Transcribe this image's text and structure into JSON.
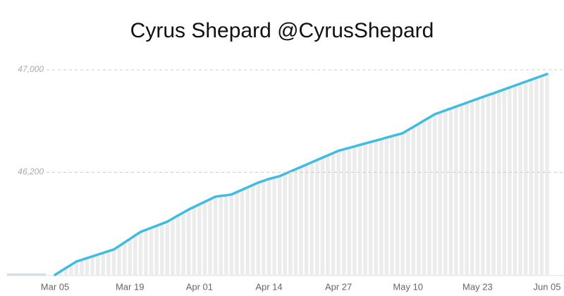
{
  "chart_data": {
    "type": "line",
    "title": "Cyrus Shepard @CyrusShepard",
    "categories": [
      "Mar 05",
      null,
      null,
      null,
      null,
      null,
      null,
      null,
      null,
      null,
      null,
      null,
      null,
      null,
      "Mar 19",
      null,
      null,
      null,
      null,
      null,
      null,
      null,
      null,
      null,
      null,
      null,
      null,
      "Apr 01",
      null,
      null,
      null,
      null,
      null,
      null,
      null,
      null,
      null,
      null,
      null,
      null,
      "Apr 14",
      null,
      null,
      null,
      null,
      null,
      null,
      null,
      null,
      null,
      null,
      null,
      null,
      "Apr 27",
      null,
      null,
      null,
      null,
      null,
      null,
      null,
      null,
      null,
      null,
      null,
      null,
      "May 10",
      null,
      null,
      null,
      null,
      null,
      null,
      null,
      null,
      null,
      null,
      null,
      null,
      "May 23",
      null,
      null,
      null,
      null,
      null,
      null,
      null,
      null,
      null,
      null,
      null,
      null,
      "Jun 05"
    ],
    "values": [
      45400,
      45426,
      45452,
      45478,
      45504,
      45517,
      45531,
      45544,
      45558,
      45571,
      45585,
      45598,
      45625,
      45653,
      45680,
      45708,
      45735,
      45751,
      45767,
      45783,
      45799,
      45815,
      45839,
      45863,
      45886,
      45910,
      45930,
      45950,
      45970,
      45990,
      46010,
      46016,
      46021,
      46027,
      46046,
      46064,
      46083,
      46101,
      46120,
      46134,
      46148,
      46159,
      46170,
      46188,
      46206,
      46224,
      46242,
      46260,
      46278,
      46296,
      46314,
      46332,
      46350,
      46368,
      46379,
      46391,
      46402,
      46414,
      46425,
      46437,
      46448,
      46459,
      46471,
      46482,
      46494,
      46505,
      46530,
      46554,
      46579,
      46604,
      46628,
      46653,
      46668,
      46683,
      46698,
      46713,
      46728,
      46743,
      46758,
      46773,
      46788,
      46803,
      46817,
      46832,
      46847,
      46862,
      46877,
      46892,
      46907,
      46922,
      46937,
      46952,
      46967
    ],
    "color": "#3fbce0",
    "ylim": [
      45400,
      47000
    ],
    "yticks": [
      {
        "value": 46200,
        "label": "46,200"
      },
      {
        "value": 47000,
        "label": "47,000"
      }
    ],
    "grid": true
  }
}
